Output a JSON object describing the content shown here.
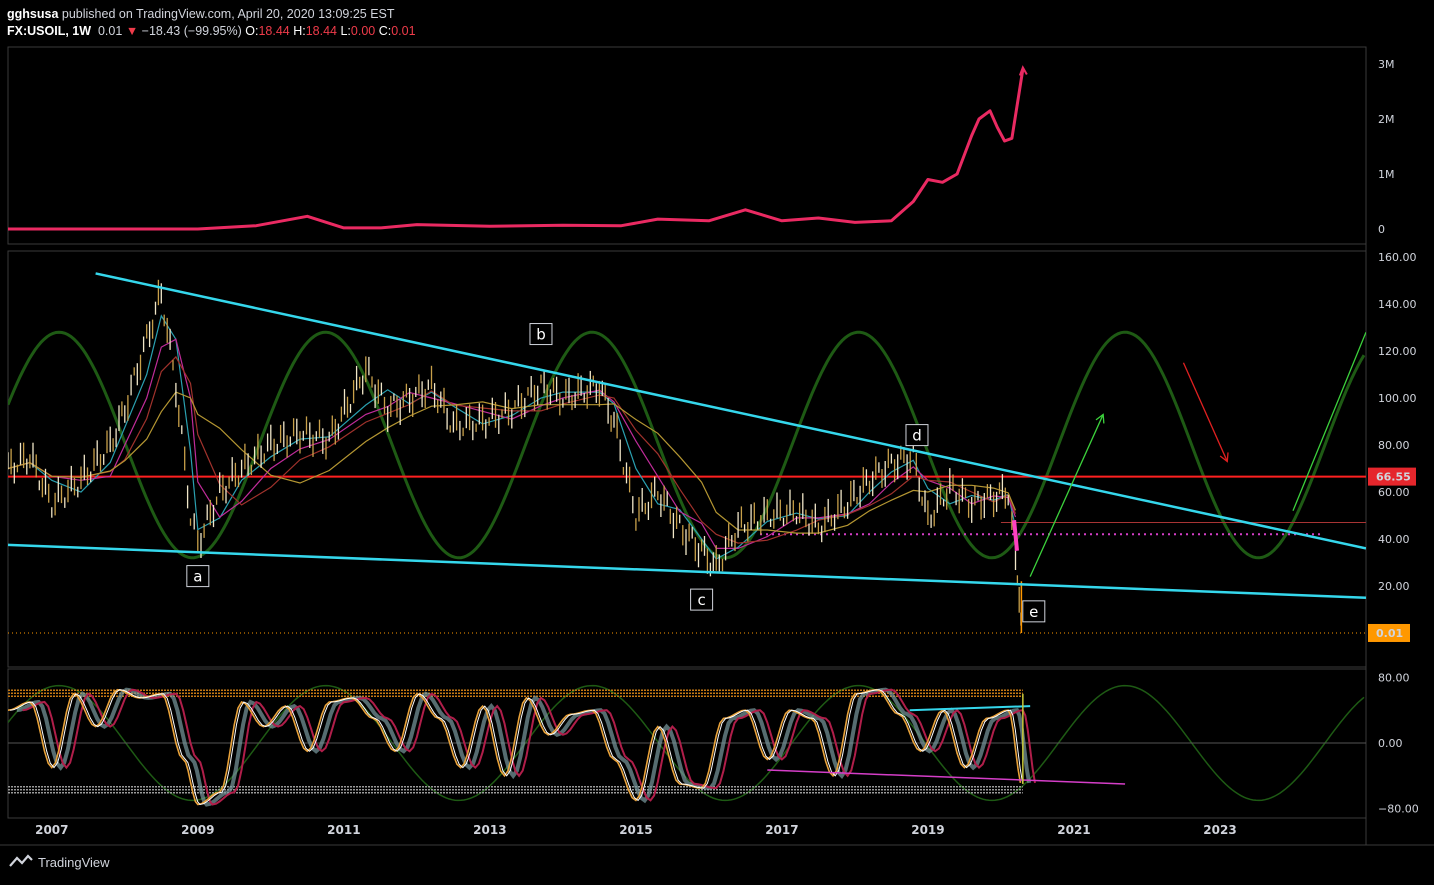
{
  "header": {
    "author": "gghsusa",
    "published_text": "published on TradingView.com, April 20, 2020 13:09:25 EST",
    "symbol_interval": "FX:USOIL, 1W",
    "last": "0.01",
    "change": "−18.43 (−99.95%)",
    "o_label": "O:",
    "o_value": "18.44",
    "h_label": "H:",
    "h_value": "18.44",
    "l_label": "L:",
    "l_value": "0.00",
    "c_label": "C:",
    "c_value": "0.01"
  },
  "footer": {
    "brand": "TradingView"
  },
  "colors": {
    "background": "#000000",
    "trendline": "#35d7ec",
    "resistance": "#ff2020",
    "volume_line": "#ea2a62",
    "sine_cycle": "#1e5a14",
    "price_label_red": "#e5262c",
    "price_label_orange": "#ff9800",
    "bull_arrow": "#3cd23c",
    "bear_arrow": "#e02020",
    "divergence": "#d53ec8"
  },
  "chart_data": [
    {
      "type": "line",
      "name": "top-indicator",
      "y_ticks": [
        "3M",
        "2M",
        "1M",
        "0"
      ],
      "ylim": [
        0,
        3000000
      ],
      "x": [
        2006.4,
        2008.0,
        2009.0,
        2009.8,
        2010.5,
        2011.0,
        2011.5,
        2012.0,
        2013.0,
        2014.0,
        2014.8,
        2015.3,
        2016.0,
        2016.5,
        2017.0,
        2017.5,
        2018.0,
        2018.5,
        2018.8,
        2019.0,
        2019.2,
        2019.4,
        2019.6,
        2019.7,
        2019.85,
        2019.95,
        2020.05,
        2020.15,
        2020.3
      ],
      "values": [
        0,
        0,
        0,
        60000,
        230000,
        20000,
        20000,
        80000,
        50000,
        70000,
        60000,
        180000,
        150000,
        350000,
        150000,
        200000,
        120000,
        150000,
        500000,
        900000,
        850000,
        1000000,
        1700000,
        2000000,
        2150000,
        1850000,
        1600000,
        1650000,
        2900000
      ]
    },
    {
      "type": "line",
      "name": "price-panel",
      "symbol": "FX:USOIL",
      "interval": "1W",
      "y_ticks": [
        "160.00",
        "140.00",
        "120.00",
        "100.00",
        "80.00",
        "60.00",
        "40.00",
        "20.00"
      ],
      "ylim": [
        0,
        160
      ],
      "x_ticks": [
        "2007",
        "2009",
        "2011",
        "2013",
        "2015",
        "2017",
        "2019",
        "2021",
        "2023"
      ],
      "xlim": [
        2006.4,
        2025.0
      ],
      "x": [
        2006.4,
        2006.7,
        2007.0,
        2007.4,
        2007.8,
        2008.0,
        2008.3,
        2008.5,
        2008.7,
        2008.9,
        2009.0,
        2009.3,
        2009.6,
        2010.0,
        2010.4,
        2010.8,
        2011.3,
        2011.6,
        2011.9,
        2012.2,
        2012.5,
        2012.9,
        2013.3,
        2013.7,
        2014.0,
        2014.5,
        2014.7,
        2015.0,
        2015.3,
        2015.6,
        2015.9,
        2016.1,
        2016.4,
        2016.8,
        2017.2,
        2017.5,
        2017.9,
        2018.2,
        2018.5,
        2018.8,
        2019.0,
        2019.3,
        2019.6,
        2019.9,
        2020.1,
        2020.2,
        2020.25,
        2020.3
      ],
      "values": [
        70,
        75,
        55,
        65,
        80,
        95,
        125,
        145,
        105,
        50,
        38,
        60,
        70,
        80,
        85,
        82,
        112,
        95,
        100,
        105,
        88,
        90,
        95,
        105,
        100,
        105,
        90,
        50,
        60,
        45,
        35,
        28,
        45,
        50,
        52,
        45,
        55,
        65,
        72,
        75,
        48,
        62,
        55,
        58,
        60,
        30,
        18,
        0.01
      ],
      "last_price_label": "0.01",
      "resistance_label": "66.55",
      "resistance_level": 66.55,
      "dotted_support_level": 42,
      "wave_labels": [
        {
          "text": "a",
          "x": 2009.0,
          "y": 24
        },
        {
          "text": "b",
          "x": 2013.7,
          "y": 127
        },
        {
          "text": "c",
          "x": 2015.9,
          "y": 14
        },
        {
          "text": "d",
          "x": 2018.85,
          "y": 84
        },
        {
          "text": "e",
          "x": 2020.45,
          "y": 9
        }
      ],
      "trendlines": [
        {
          "name": "upper",
          "x": [
            2007.6,
            2025.0
          ],
          "y": [
            153,
            36
          ]
        },
        {
          "name": "lower",
          "x": [
            2006.4,
            2025.0
          ],
          "y": [
            37.5,
            15
          ]
        }
      ],
      "arrows": [
        {
          "name": "green-1",
          "x": [
            2020.4,
            2021.4
          ],
          "y": [
            24,
            93
          ]
        },
        {
          "name": "red",
          "x": [
            2022.5,
            2023.1
          ],
          "y": [
            115,
            73
          ]
        },
        {
          "name": "green-2",
          "x": [
            2024.0,
            2025.0
          ],
          "y": [
            52,
            128
          ]
        }
      ]
    },
    {
      "type": "line",
      "name": "oscillator-panel",
      "y_ticks": [
        "80.00",
        "0.00",
        "−80.00"
      ],
      "ylim": [
        -85,
        85
      ],
      "bands": [
        57,
        -57
      ],
      "x": [
        2006.4,
        2006.7,
        2007.0,
        2007.3,
        2007.6,
        2007.9,
        2008.2,
        2008.5,
        2008.8,
        2009.0,
        2009.3,
        2009.6,
        2009.9,
        2010.2,
        2010.5,
        2010.8,
        2011.1,
        2011.4,
        2011.7,
        2012.0,
        2012.3,
        2012.6,
        2012.9,
        2013.2,
        2013.5,
        2013.8,
        2014.1,
        2014.4,
        2014.7,
        2015.0,
        2015.3,
        2015.6,
        2015.9,
        2016.2,
        2016.5,
        2016.8,
        2017.1,
        2017.4,
        2017.7,
        2018.0,
        2018.3,
        2018.6,
        2018.9,
        2019.2,
        2019.5,
        2019.8,
        2020.1,
        2020.3
      ],
      "values": [
        40,
        50,
        -30,
        60,
        20,
        65,
        55,
        60,
        -20,
        -75,
        -60,
        50,
        20,
        45,
        -10,
        50,
        55,
        30,
        -10,
        60,
        30,
        -30,
        45,
        -40,
        55,
        10,
        35,
        40,
        -20,
        -70,
        20,
        -50,
        -55,
        30,
        40,
        -20,
        40,
        30,
        -40,
        60,
        65,
        35,
        -10,
        40,
        -30,
        30,
        40,
        -55
      ]
    }
  ]
}
